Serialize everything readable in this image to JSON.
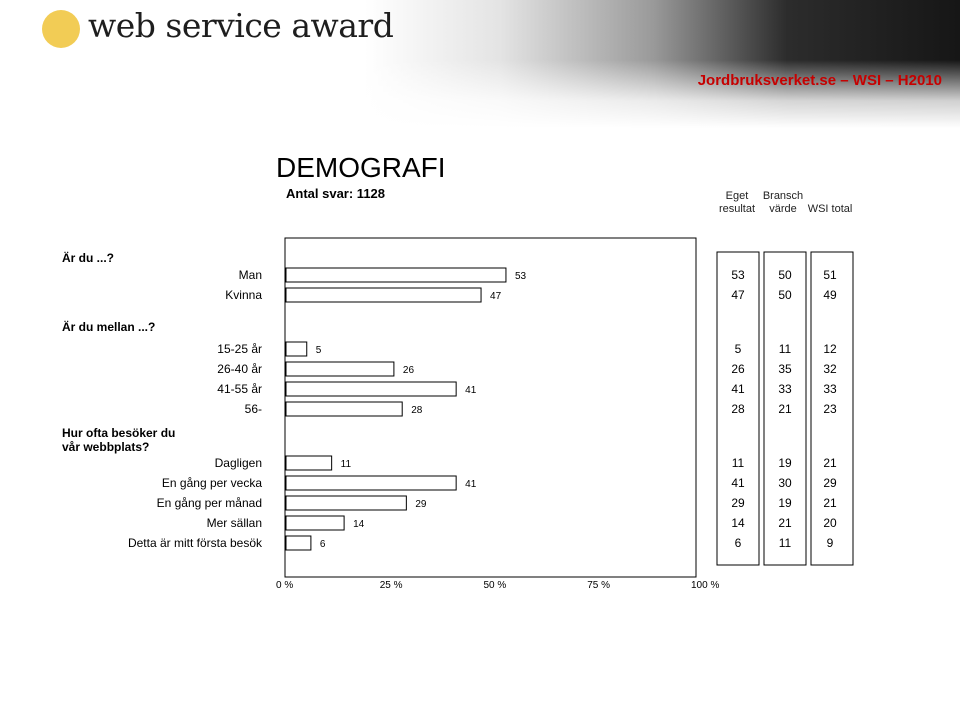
{
  "logo_text": "web service award",
  "site_title": "Jordbruksverket.se – WSI – H2010",
  "page_title": "DEMOGRAFI",
  "subtitle": "Antal svar: 1128",
  "columns": {
    "own": "Eget resultat",
    "industry": "Bransch värde",
    "total": "WSI total"
  },
  "x_ticks": [
    "0 %",
    "25 %",
    "50 %",
    "75 %",
    "100 %"
  ],
  "colors": {
    "bar_fill": "#ffffff",
    "bar_stroke": "#000000",
    "header_title": "#c60000",
    "logo_dot": "#f2cc55"
  },
  "chart_data": {
    "type": "bar",
    "orientation": "horizontal",
    "xlim": [
      0,
      100
    ],
    "groups": [
      {
        "question": "Är du ...?",
        "categories": [
          "Man",
          "Kvinna"
        ],
        "values": [
          53,
          47
        ],
        "industry": [
          50,
          50
        ],
        "wsi_total": [
          51,
          49
        ]
      },
      {
        "question": "Är du mellan ...?",
        "categories": [
          "15-25 år",
          "26-40 år",
          "41-55 år",
          "56-"
        ],
        "values": [
          5,
          26,
          41,
          28
        ],
        "industry": [
          11,
          35,
          33,
          21
        ],
        "wsi_total": [
          12,
          32,
          33,
          23
        ]
      },
      {
        "question": "Hur ofta besöker du vår webbplats?",
        "categories": [
          "Dagligen",
          "En gång per vecka",
          "En gång per månad",
          "Mer sällan",
          "Detta är mitt första besök"
        ],
        "values": [
          11,
          41,
          29,
          14,
          6
        ],
        "industry": [
          19,
          30,
          19,
          21,
          11
        ],
        "wsi_total": [
          21,
          29,
          21,
          20,
          9
        ]
      }
    ]
  }
}
